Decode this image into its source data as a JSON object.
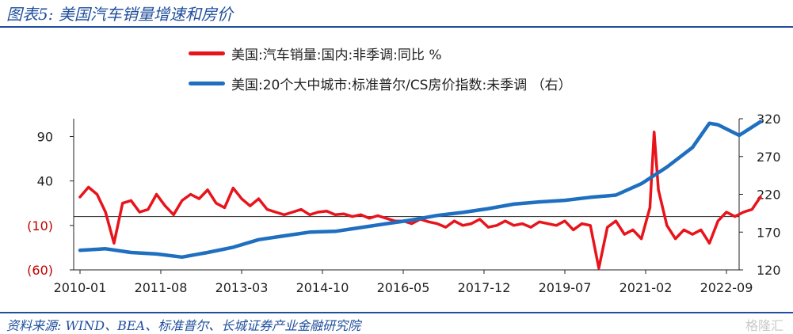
{
  "figure": {
    "title": "图表5:  美国汽车销量增速和房价",
    "source": "资料来源: WIND、BEA、标准普尔、长城证券产业金融研究院",
    "watermark": "格隆汇"
  },
  "chart_data": {
    "type": "line",
    "title": "图表5:  美国汽车销量增速和房价",
    "x_tick_labels": [
      "2010-01",
      "2011-08",
      "2013-03",
      "2014-10",
      "2016-05",
      "2017-12",
      "2019-07",
      "2021-02",
      "2022-09"
    ],
    "left_axis": {
      "ylim": [
        -60,
        110
      ],
      "ticks": [
        90,
        40,
        -10,
        -60
      ],
      "tick_labels": [
        "90",
        "40",
        "(10)",
        "(60)"
      ]
    },
    "right_axis": {
      "ylim": [
        120,
        320
      ],
      "ticks": [
        320,
        270,
        220,
        170,
        120
      ],
      "tick_labels": [
        "320",
        "270",
        "220",
        "170",
        "120"
      ]
    },
    "zero_line": true,
    "legend_position": "top",
    "series": [
      {
        "name": "美国:汽车销量:国内:非季调:同比 %",
        "axis": "left",
        "color": "#e8141b",
        "x": [
          "2010-01",
          "2010-03",
          "2010-05",
          "2010-07",
          "2010-09",
          "2010-11",
          "2011-01",
          "2011-03",
          "2011-05",
          "2011-07",
          "2011-09",
          "2011-11",
          "2012-01",
          "2012-03",
          "2012-05",
          "2012-07",
          "2012-09",
          "2012-11",
          "2013-01",
          "2013-03",
          "2013-05",
          "2013-07",
          "2013-09",
          "2013-11",
          "2014-01",
          "2014-03",
          "2014-05",
          "2014-07",
          "2014-09",
          "2014-11",
          "2015-01",
          "2015-03",
          "2015-05",
          "2015-07",
          "2015-09",
          "2015-11",
          "2016-01",
          "2016-03",
          "2016-05",
          "2016-07",
          "2016-09",
          "2016-11",
          "2017-01",
          "2017-03",
          "2017-05",
          "2017-07",
          "2017-09",
          "2017-11",
          "2018-01",
          "2018-03",
          "2018-05",
          "2018-07",
          "2018-09",
          "2018-11",
          "2019-01",
          "2019-03",
          "2019-05",
          "2019-07",
          "2019-09",
          "2019-11",
          "2020-01",
          "2020-03",
          "2020-04",
          "2020-05",
          "2020-07",
          "2020-09",
          "2020-11",
          "2021-01",
          "2021-03",
          "2021-04",
          "2021-05",
          "2021-07",
          "2021-09",
          "2021-11",
          "2022-01",
          "2022-03",
          "2022-05",
          "2022-07",
          "2022-09",
          "2022-11",
          "2023-01",
          "2023-03",
          "2023-05"
        ],
        "values": [
          22,
          33,
          25,
          5,
          -30,
          15,
          18,
          5,
          8,
          25,
          12,
          2,
          18,
          25,
          20,
          30,
          15,
          10,
          32,
          20,
          12,
          20,
          8,
          5,
          2,
          5,
          8,
          2,
          5,
          6,
          2,
          3,
          0,
          2,
          -2,
          1,
          -2,
          -5,
          -5,
          -8,
          -3,
          -6,
          -8,
          -12,
          -5,
          -10,
          -8,
          -3,
          -12,
          -10,
          -5,
          -10,
          -8,
          -12,
          -6,
          -8,
          -10,
          -5,
          -15,
          -8,
          -10,
          -58,
          -35,
          -12,
          -5,
          -20,
          -15,
          -25,
          10,
          95,
          30,
          -10,
          -25,
          -15,
          -20,
          -15,
          -30,
          -5,
          5,
          0,
          5,
          8,
          22
        ]
      },
      {
        "name": "美国:20个大中城市:标准普尔/CS房价指数:未季调 （右）",
        "axis": "right",
        "color": "#1f6fc0",
        "x": [
          "2010-01",
          "2010-07",
          "2011-01",
          "2011-07",
          "2012-01",
          "2012-07",
          "2013-01",
          "2013-07",
          "2014-01",
          "2014-07",
          "2015-01",
          "2015-07",
          "2016-01",
          "2016-07",
          "2017-01",
          "2017-07",
          "2018-01",
          "2018-07",
          "2019-01",
          "2019-07",
          "2020-01",
          "2020-07",
          "2021-01",
          "2021-07",
          "2022-01",
          "2022-05",
          "2022-07",
          "2022-12",
          "2023-05"
        ],
        "values": [
          146,
          148,
          143,
          141,
          137,
          143,
          150,
          160,
          165,
          170,
          171,
          176,
          181,
          186,
          192,
          196,
          201,
          207,
          210,
          212,
          216,
          219,
          234,
          256,
          282,
          314,
          312,
          298,
          316
        ]
      }
    ]
  }
}
